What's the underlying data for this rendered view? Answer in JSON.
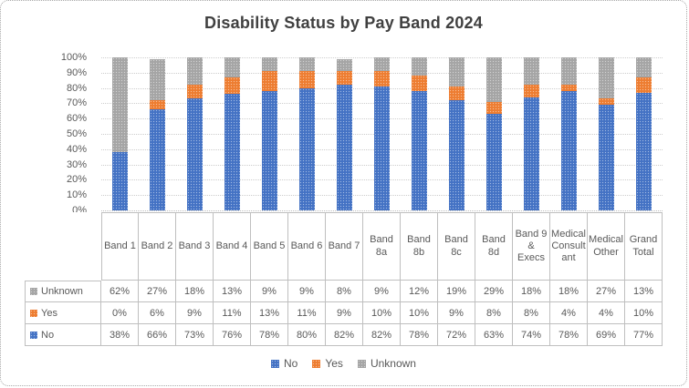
{
  "title": "Disability Status by Pay Band 2024",
  "colors": {
    "no": "#4472C4",
    "yes": "#ED7D31",
    "unknown": "#A5A5A5",
    "text": "#595959",
    "title_text": "#404040"
  },
  "chart_data": {
    "type": "bar",
    "subtype": "100-percent-stacked-column",
    "title": "Disability Status by Pay Band 2024",
    "categories": [
      "Band 1",
      "Band 2",
      "Band 3",
      "Band 4",
      "Band 5",
      "Band 6",
      "Band 7",
      "Band 8a",
      "Band 8b",
      "Band 8c",
      "Band 8d",
      "Band 9 & Execs",
      "Medical Consultant",
      "Medical Other",
      "Grand Total"
    ],
    "series": [
      {
        "name": "No",
        "color": "#4472C4",
        "values": [
          38,
          66,
          73,
          76,
          78,
          80,
          82,
          82,
          78,
          72,
          63,
          74,
          78,
          69,
          77
        ]
      },
      {
        "name": "Yes",
        "color": "#ED7D31",
        "values": [
          0,
          6,
          9,
          11,
          13,
          11,
          9,
          10,
          10,
          9,
          8,
          8,
          4,
          4,
          10
        ]
      },
      {
        "name": "Unknown",
        "color": "#A5A5A5",
        "values": [
          62,
          27,
          18,
          13,
          9,
          9,
          8,
          9,
          12,
          19,
          29,
          18,
          18,
          27,
          13
        ]
      }
    ],
    "y_ticks": [
      "100%",
      "90%",
      "80%",
      "70%",
      "60%",
      "50%",
      "40%",
      "30%",
      "20%",
      "10%",
      "0%"
    ],
    "ylim": [
      0,
      100
    ],
    "grid": true,
    "legend_position": "bottom",
    "legend": [
      "No",
      "Yes",
      "Unknown"
    ],
    "data_table": {
      "rows": [
        {
          "label": "Unknown",
          "color": "#A5A5A5",
          "cells": [
            "62%",
            "27%",
            "18%",
            "13%",
            "9%",
            "9%",
            "8%",
            "9%",
            "12%",
            "19%",
            "29%",
            "18%",
            "18%",
            "27%",
            "13%"
          ]
        },
        {
          "label": "Yes",
          "color": "#ED7D31",
          "cells": [
            "0%",
            "6%",
            "9%",
            "11%",
            "13%",
            "11%",
            "9%",
            "10%",
            "10%",
            "9%",
            "8%",
            "8%",
            "4%",
            "4%",
            "10%"
          ]
        },
        {
          "label": "No",
          "color": "#4472C4",
          "cells": [
            "38%",
            "66%",
            "73%",
            "76%",
            "78%",
            "80%",
            "82%",
            "82%",
            "78%",
            "72%",
            "63%",
            "74%",
            "78%",
            "69%",
            "77%"
          ]
        }
      ]
    }
  }
}
